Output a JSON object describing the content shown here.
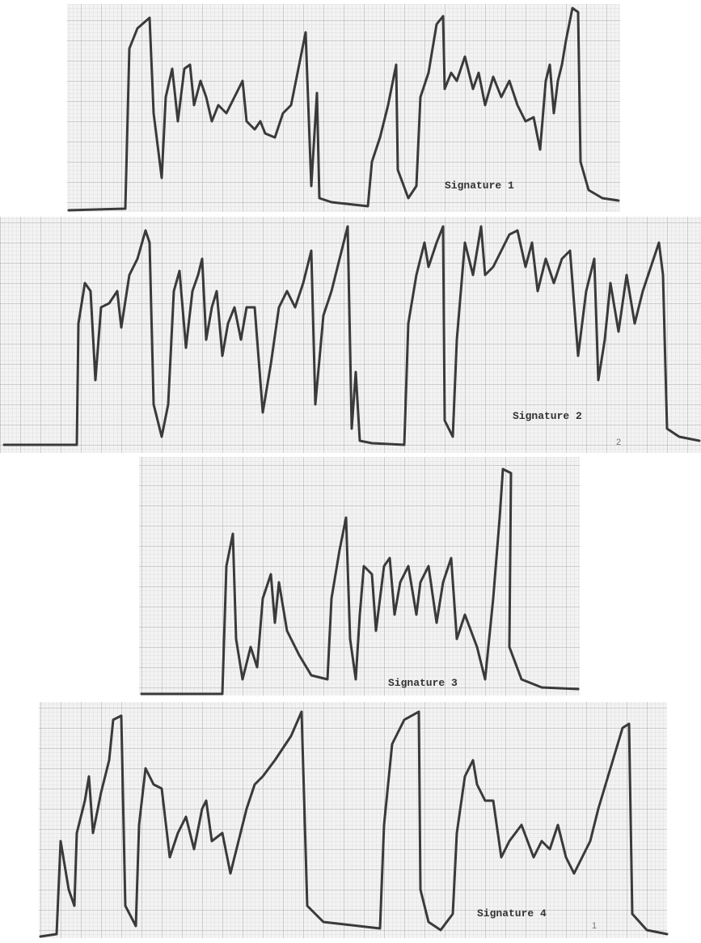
{
  "panels": [
    {
      "label": "Signature 1"
    },
    {
      "label": "Signature 2",
      "mark": "2"
    },
    {
      "label": "Signature 3"
    },
    {
      "label": "Signature 4",
      "mark": "1"
    }
  ]
}
